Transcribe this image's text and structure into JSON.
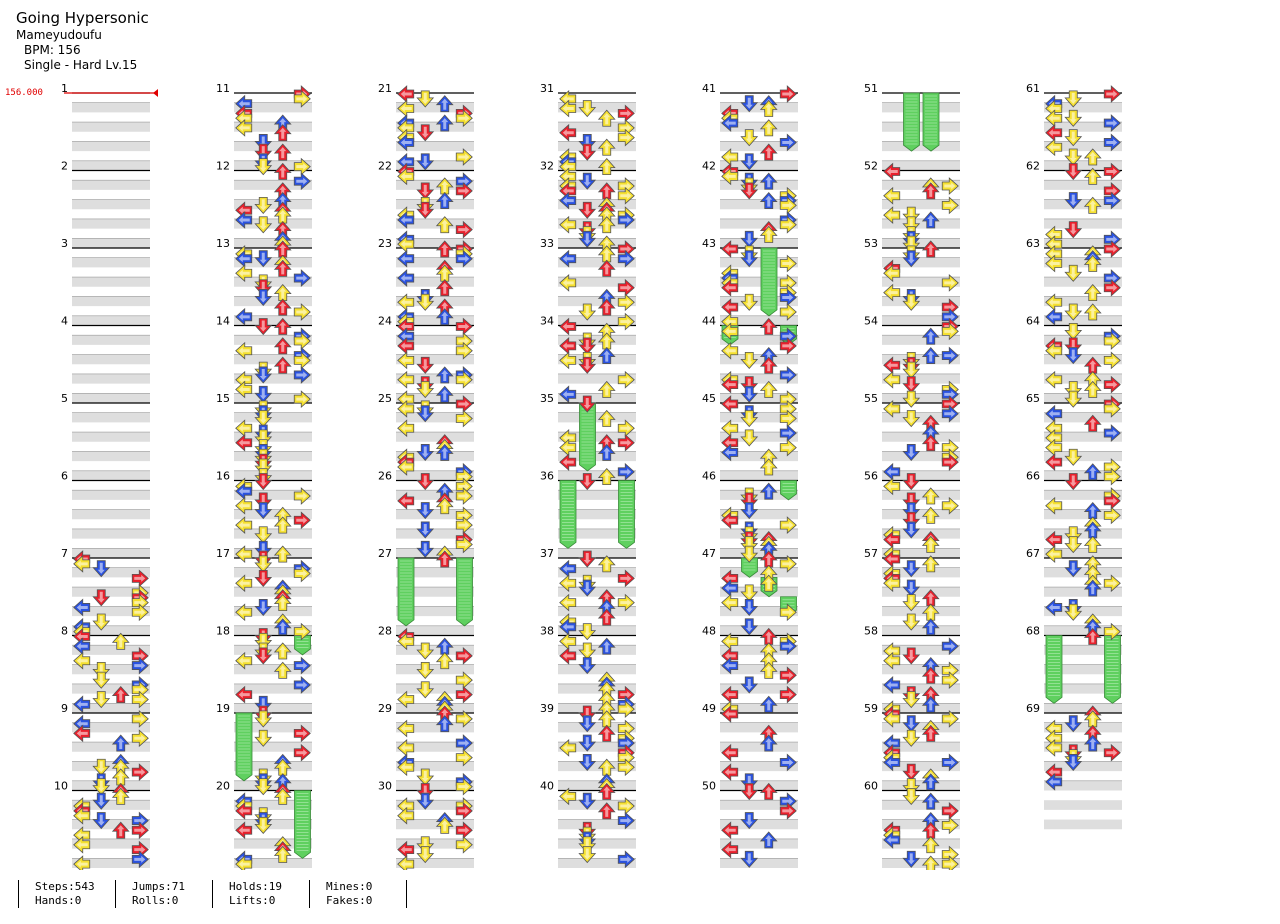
{
  "song": {
    "title": "Going Hypersonic",
    "artist": "Mameyudoufu",
    "bpm_text": "BPM: 156",
    "difficulty_text": "Single - Hard  Lv.15"
  },
  "bpm_marker": {
    "value": "156.000",
    "measure": 1
  },
  "colors": {
    "red": "#e8202c",
    "blue": "#2a52e0",
    "yellow": "#f5e030",
    "hold": "#5fd05f",
    "band": "#dedede",
    "bpm": "#e00000"
  },
  "chart_data": {
    "type": "table",
    "measures": 69,
    "columns": 7,
    "measures_per_column": 10,
    "lanes": [
      "left",
      "down",
      "up",
      "right"
    ],
    "holds": [
      {
        "measure": 19,
        "lane": 0,
        "start_beat": 0,
        "len_beats": 3.5
      },
      {
        "measure": 20,
        "lane": 3,
        "start_beat": 0,
        "len_beats": 3.5
      },
      {
        "measure": 18,
        "lane": 3,
        "start_beat": 0,
        "len_beats": 1
      },
      {
        "measure": 27,
        "lane": 0,
        "start_beat": 0,
        "len_beats": 3.5
      },
      {
        "measure": 27,
        "lane": 3,
        "start_beat": 0,
        "len_beats": 3.5
      },
      {
        "measure": 35,
        "lane": 1,
        "start_beat": 0,
        "len_beats": 3.5
      },
      {
        "measure": 36,
        "lane": 0,
        "start_beat": 0,
        "len_beats": 3.5
      },
      {
        "measure": 36,
        "lane": 3,
        "start_beat": 0,
        "len_beats": 3.5
      },
      {
        "measure": 43,
        "lane": 2,
        "start_beat": 0,
        "len_beats": 3.5
      },
      {
        "measure": 44,
        "lane": 0,
        "start_beat": 0,
        "len_beats": 1
      },
      {
        "measure": 44,
        "lane": 3,
        "start_beat": 0,
        "len_beats": 1
      },
      {
        "measure": 46,
        "lane": 3,
        "start_beat": 0,
        "len_beats": 1
      },
      {
        "measure": 47,
        "lane": 1,
        "start_beat": 0,
        "len_beats": 1
      },
      {
        "measure": 47,
        "lane": 2,
        "start_beat": 1,
        "len_beats": 1
      },
      {
        "measure": 47,
        "lane": 3,
        "start_beat": 2,
        "len_beats": 1
      },
      {
        "measure": 51,
        "lane": 1,
        "start_beat": 0,
        "len_beats": 3
      },
      {
        "measure": 51,
        "lane": 2,
        "start_beat": 0,
        "len_beats": 3
      },
      {
        "measure": 68,
        "lane": 0,
        "start_beat": 0,
        "len_beats": 3.5
      },
      {
        "measure": 68,
        "lane": 3,
        "start_beat": 0,
        "len_beats": 3.5
      }
    ]
  },
  "stats": [
    {
      "top": "Steps:543",
      "bottom": "Hands:0"
    },
    {
      "top": "Jumps:71",
      "bottom": "Rolls:0"
    },
    {
      "top": "Holds:19",
      "bottom": "Lifts:0"
    },
    {
      "top": "Mines:0",
      "bottom": "Fakes:0"
    }
  ]
}
